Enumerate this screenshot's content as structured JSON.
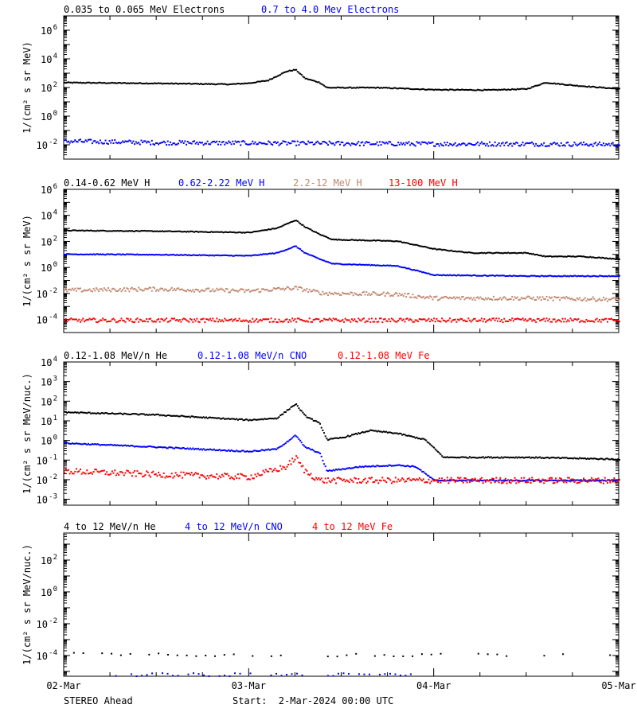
{
  "footer": {
    "left": "STEREO Ahead",
    "start": "Start:  2-Mar-2024 00:00 UTC"
  },
  "x_ticks": [
    "02-Mar",
    "03-Mar",
    "04-Mar",
    "05-Mar"
  ],
  "chart_data": [
    {
      "type": "scatter",
      "log_y": true,
      "ylabel": "1/(cm² s sr MeV)",
      "y_ticks": [
        {
          "value": 0.01,
          "base": "10",
          "exp": "-2"
        },
        {
          "value": 1,
          "base": "10",
          "exp": "0"
        },
        {
          "value": 100.0,
          "base": "10",
          "exp": "2"
        },
        {
          "value": 10000.0,
          "base": "10",
          "exp": "4"
        },
        {
          "value": 1000000.0,
          "base": "10",
          "exp": "6"
        }
      ],
      "ylim": [
        0.001,
        10000000
      ],
      "xlim_days": [
        0,
        3
      ],
      "series": [
        {
          "name": "0.035 to 0.065 MeV Electrons",
          "color": "#000000",
          "points": [
            [
              0,
              250
            ],
            [
              0.5,
              220
            ],
            [
              0.9,
              190
            ],
            [
              1.0,
              230
            ],
            [
              1.1,
              350
            ],
            [
              1.2,
              1500
            ],
            [
              1.25,
              2000
            ],
            [
              1.3,
              500
            ],
            [
              1.38,
              250
            ],
            [
              1.42,
              110
            ],
            [
              1.7,
              110
            ],
            [
              2.0,
              80
            ],
            [
              2.3,
              75
            ],
            [
              2.5,
              90
            ],
            [
              2.6,
              250
            ],
            [
              2.75,
              160
            ],
            [
              3.0,
              90
            ]
          ]
        },
        {
          "name": "0.7 to 4.0 Mev Electrons",
          "color": "#0000ff",
          "points": [
            [
              0,
              0.02
            ],
            [
              0.5,
              0.016
            ],
            [
              1.0,
              0.015
            ],
            [
              1.5,
              0.014
            ],
            [
              2.0,
              0.013
            ],
            [
              2.5,
              0.013
            ],
            [
              3.0,
              0.012
            ]
          ]
        }
      ]
    },
    {
      "type": "scatter",
      "log_y": true,
      "ylabel": "1/(cm² s sr MeV)",
      "y_ticks": [
        {
          "value": 0.0001,
          "base": "10",
          "exp": "-4"
        },
        {
          "value": 0.01,
          "base": "10",
          "exp": "-2"
        },
        {
          "value": 1,
          "base": "10",
          "exp": "0"
        },
        {
          "value": 100.0,
          "base": "10",
          "exp": "2"
        },
        {
          "value": 10000.0,
          "base": "10",
          "exp": "4"
        },
        {
          "value": 1000000.0,
          "base": "10",
          "exp": "6"
        }
      ],
      "ylim": [
        1e-05,
        1000000
      ],
      "xlim_days": [
        0,
        3
      ],
      "series": [
        {
          "name": "0.14-0.62 MeV H",
          "color": "#000000",
          "points": [
            [
              0,
              800
            ],
            [
              0.5,
              700
            ],
            [
              1.0,
              550
            ],
            [
              1.15,
              1200
            ],
            [
              1.25,
              5000
            ],
            [
              1.3,
              1500
            ],
            [
              1.38,
              400
            ],
            [
              1.45,
              160
            ],
            [
              1.8,
              120
            ],
            [
              2.0,
              30
            ],
            [
              2.2,
              15
            ],
            [
              2.5,
              15
            ],
            [
              2.6,
              8
            ],
            [
              2.8,
              8
            ],
            [
              3.0,
              5
            ]
          ]
        },
        {
          "name": "0.62-2.22 MeV H",
          "color": "#0000ff",
          "points": [
            [
              0,
              12
            ],
            [
              0.5,
              11
            ],
            [
              1.0,
              9
            ],
            [
              1.15,
              15
            ],
            [
              1.25,
              50
            ],
            [
              1.3,
              15
            ],
            [
              1.38,
              5
            ],
            [
              1.45,
              2.2
            ],
            [
              1.8,
              1.5
            ],
            [
              2.0,
              0.3
            ],
            [
              2.5,
              0.25
            ],
            [
              3.0,
              0.25
            ]
          ]
        },
        {
          "name": "2.2-12 MeV H",
          "color": "#c08870",
          "points": [
            [
              0,
              0.02
            ],
            [
              0.5,
              0.025
            ],
            [
              1.0,
              0.018
            ],
            [
              1.25,
              0.03
            ],
            [
              1.4,
              0.012
            ],
            [
              1.8,
              0.01
            ],
            [
              2.0,
              0.005
            ],
            [
              2.5,
              0.005
            ],
            [
              3.0,
              0.004
            ]
          ]
        },
        {
          "name": "13-100 MeV H",
          "color": "#ff0000",
          "points": [
            [
              0,
              0.0001
            ],
            [
              1.5,
              0.0001
            ],
            [
              3.0,
              0.0001
            ]
          ]
        }
      ]
    },
    {
      "type": "scatter",
      "log_y": true,
      "ylabel": "1/(cm² s sr MeV/nuc.)",
      "y_ticks": [
        {
          "value": 0.001,
          "base": "10",
          "exp": "-3"
        },
        {
          "value": 0.01,
          "base": "10",
          "exp": "-2"
        },
        {
          "value": 0.1,
          "base": "10",
          "exp": "-1"
        },
        {
          "value": 1,
          "base": "10",
          "exp": "0"
        },
        {
          "value": 10,
          "base": "10",
          "exp": "1"
        },
        {
          "value": 100,
          "base": "10",
          "exp": "2"
        },
        {
          "value": 1000,
          "base": "10",
          "exp": "3"
        },
        {
          "value": 10000,
          "base": "10",
          "exp": "4"
        }
      ],
      "ylim": [
        0.0005,
        10000
      ],
      "xlim_days": [
        0,
        3
      ],
      "series": [
        {
          "name": "0.12-1.08 MeV/n He",
          "color": "#000000",
          "points": [
            [
              0,
              30
            ],
            [
              0.5,
              22
            ],
            [
              1.0,
              12
            ],
            [
              1.15,
              15
            ],
            [
              1.25,
              80
            ],
            [
              1.3,
              20
            ],
            [
              1.38,
              8
            ],
            [
              1.42,
              1.2
            ],
            [
              1.5,
              1.5
            ],
            [
              1.65,
              3.5
            ],
            [
              1.8,
              2.5
            ],
            [
              1.95,
              1.2
            ],
            [
              2.05,
              0.15
            ],
            [
              2.5,
              0.15
            ],
            [
              3.0,
              0.12
            ]
          ]
        },
        {
          "name": "0.12-1.08 MeV/n CNO",
          "color": "#0000ff",
          "points": [
            [
              0,
              0.8
            ],
            [
              0.5,
              0.5
            ],
            [
              1.0,
              0.3
            ],
            [
              1.15,
              0.4
            ],
            [
              1.25,
              2
            ],
            [
              1.3,
              0.5
            ],
            [
              1.38,
              0.25
            ],
            [
              1.42,
              0.03
            ],
            [
              1.6,
              0.05
            ],
            [
              1.8,
              0.06
            ],
            [
              1.9,
              0.05
            ],
            [
              2.0,
              0.01
            ],
            [
              2.5,
              0.01
            ],
            [
              3.0,
              0.01
            ]
          ]
        },
        {
          "name": "0.12-1.08 MeV Fe",
          "color": "#ff0000",
          "points": [
            [
              0,
              0.03
            ],
            [
              0.5,
              0.02
            ],
            [
              1.0,
              0.015
            ],
            [
              1.2,
              0.05
            ],
            [
              1.25,
              0.15
            ],
            [
              1.3,
              0.03
            ],
            [
              1.38,
              0.01
            ],
            [
              1.6,
              0.01
            ],
            [
              2.0,
              0.01
            ],
            [
              3.0,
              0.01
            ]
          ]
        }
      ]
    },
    {
      "type": "scatter",
      "log_y": true,
      "ylabel": "1/(cm² s sr MeV/nuc.)",
      "y_ticks": [
        {
          "value": 0.0001,
          "base": "10",
          "exp": "-4"
        },
        {
          "value": 0.01,
          "base": "10",
          "exp": "-2"
        },
        {
          "value": 1,
          "base": "10",
          "exp": "0"
        },
        {
          "value": 100.0,
          "base": "10",
          "exp": "2"
        }
      ],
      "ylim": [
        5e-06,
        5000
      ],
      "xlim_days": [
        0,
        3
      ],
      "series": [
        {
          "name": "4 to 12 MeV/n He",
          "color": "#000000",
          "points": [
            [
              0,
              0.00015
            ],
            [
              1.0,
              0.00012
            ],
            [
              2.0,
              0.00012
            ],
            [
              3.0,
              0.00013
            ]
          ]
        },
        {
          "name": "4 to 12 MeV/n CNO",
          "color": "#0000ff",
          "points": [
            [
              0.25,
              7e-06
            ],
            [
              0.95,
              7e-06
            ],
            [
              1.9,
              7e-06
            ]
          ]
        },
        {
          "name": "4 to 12 MeV Fe",
          "color": "#ff0000",
          "points": []
        }
      ]
    }
  ]
}
